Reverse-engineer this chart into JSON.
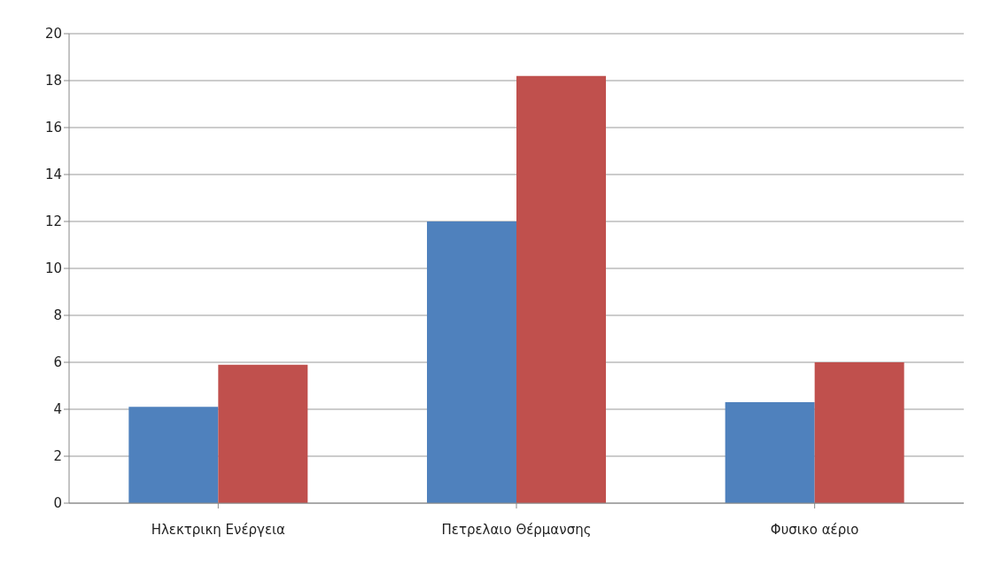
{
  "chart_data": {
    "type": "bar",
    "categories": [
      "Ηλεκτρικη Ενέργεια",
      "Πετρελαιο Θέρμανσης",
      "Φυσικο αέριο"
    ],
    "series": [
      {
        "color": "#4f81bd",
        "values": [
          4.1,
          12,
          4.3
        ]
      },
      {
        "color": "#c0504d",
        "values": [
          5.9,
          18.2,
          6
        ]
      }
    ],
    "ylim": [
      0,
      20
    ],
    "yticks": [
      0,
      2,
      4,
      6,
      8,
      10,
      12,
      14,
      16,
      18,
      20
    ],
    "grid": "y",
    "legend": false
  }
}
